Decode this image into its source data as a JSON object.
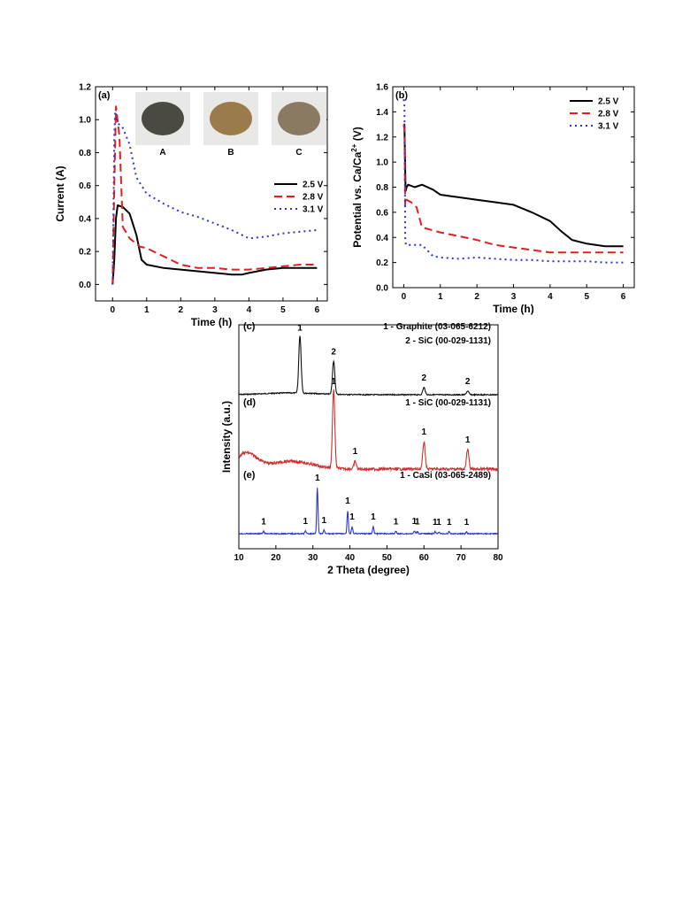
{
  "chart_data": [
    {
      "type": "line",
      "panel": "(a)",
      "xlabel": "Time (h)",
      "ylabel": "Current (A)",
      "xlim": [
        -0.5,
        6.3
      ],
      "ylim": [
        -0.1,
        1.2
      ],
      "xticks": [
        0,
        1,
        2,
        3,
        4,
        5,
        6
      ],
      "yticks": [
        0.0,
        0.2,
        0.4,
        0.6,
        0.8,
        1.0,
        1.2
      ],
      "legend_position": "middle-right",
      "insets": [
        {
          "label": "A",
          "color": "#4a4a42"
        },
        {
          "label": "B",
          "color": "#9a7c4c"
        },
        {
          "label": "C",
          "color": "#8a7a62"
        }
      ],
      "series": [
        {
          "name": "2.5 V",
          "color": "#000000",
          "dash": "solid",
          "x": [
            0.0,
            0.05,
            0.1,
            0.15,
            0.3,
            0.5,
            0.7,
            0.85,
            1.0,
            1.5,
            2.0,
            2.5,
            3.0,
            3.5,
            3.8,
            4.0,
            4.5,
            5.0,
            5.5,
            6.0
          ],
          "y": [
            0.0,
            0.15,
            0.4,
            0.48,
            0.47,
            0.43,
            0.3,
            0.15,
            0.12,
            0.1,
            0.09,
            0.08,
            0.07,
            0.06,
            0.06,
            0.07,
            0.09,
            0.1,
            0.1,
            0.1
          ]
        },
        {
          "name": "2.8 V",
          "color": "#e02020",
          "dash": "dashed",
          "x": [
            0.0,
            0.05,
            0.1,
            0.2,
            0.3,
            0.5,
            0.8,
            1.0,
            1.5,
            2.0,
            2.5,
            3.0,
            3.5,
            4.0,
            4.5,
            5.0,
            5.5,
            6.0
          ],
          "y": [
            0.0,
            0.6,
            1.08,
            0.9,
            0.35,
            0.28,
            0.23,
            0.22,
            0.17,
            0.12,
            0.1,
            0.1,
            0.09,
            0.09,
            0.1,
            0.11,
            0.12,
            0.12
          ]
        },
        {
          "name": "3.1 V",
          "color": "#2a35d0",
          "dash": "dotted",
          "x": [
            0.0,
            0.05,
            0.08,
            0.15,
            0.3,
            0.5,
            0.7,
            1.0,
            1.5,
            2.0,
            2.5,
            3.0,
            3.5,
            4.0,
            4.5,
            5.0,
            5.5,
            6.0
          ],
          "y": [
            0.0,
            0.9,
            1.05,
            0.98,
            0.95,
            0.85,
            0.65,
            0.55,
            0.49,
            0.44,
            0.41,
            0.37,
            0.33,
            0.28,
            0.29,
            0.31,
            0.32,
            0.33
          ]
        }
      ]
    },
    {
      "type": "line",
      "panel": "(b)",
      "xlabel": "Time (h)",
      "ylabel": "Potential vs. Ca/Ca",
      "ylabel_sup": "2+",
      "ylabel_unit": " (V)",
      "xlim": [
        -0.3,
        6.3
      ],
      "ylim": [
        0.0,
        1.6
      ],
      "xticks": [
        0,
        1,
        2,
        3,
        4,
        5,
        6
      ],
      "yticks": [
        0.0,
        0.2,
        0.4,
        0.6,
        0.8,
        1.0,
        1.2,
        1.4,
        1.6
      ],
      "legend_position": "top-right",
      "series": [
        {
          "name": "2.5 V",
          "color": "#000000",
          "dash": "solid",
          "x": [
            0.0,
            0.02,
            0.05,
            0.08,
            0.12,
            0.3,
            0.5,
            0.8,
            1.0,
            1.5,
            2.0,
            2.5,
            3.0,
            3.5,
            4.0,
            4.3,
            4.6,
            5.0,
            5.5,
            6.0
          ],
          "y": [
            1.3,
            1.3,
            0.77,
            0.8,
            0.82,
            0.8,
            0.82,
            0.78,
            0.74,
            0.72,
            0.7,
            0.68,
            0.66,
            0.6,
            0.53,
            0.45,
            0.38,
            0.35,
            0.33,
            0.33
          ]
        },
        {
          "name": "2.8 V",
          "color": "#e02020",
          "dash": "dashed",
          "x": [
            0.0,
            0.02,
            0.04,
            0.08,
            0.2,
            0.35,
            0.5,
            1.0,
            1.5,
            2.0,
            2.5,
            3.0,
            3.5,
            4.0,
            4.5,
            5.0,
            5.5,
            6.0
          ],
          "y": [
            1.3,
            1.25,
            0.65,
            0.7,
            0.68,
            0.64,
            0.48,
            0.44,
            0.41,
            0.38,
            0.34,
            0.32,
            0.3,
            0.28,
            0.28,
            0.28,
            0.28,
            0.28
          ]
        },
        {
          "name": "3.1 V",
          "color": "#2a35d0",
          "dash": "dotted",
          "x": [
            0.0,
            0.02,
            0.04,
            0.06,
            0.3,
            0.5,
            0.8,
            1.0,
            1.5,
            2.0,
            2.5,
            3.0,
            3.5,
            4.0,
            4.5,
            5.0,
            5.5,
            6.0
          ],
          "y": [
            1.5,
            1.45,
            0.4,
            0.34,
            0.34,
            0.34,
            0.25,
            0.24,
            0.23,
            0.24,
            0.23,
            0.22,
            0.22,
            0.21,
            0.21,
            0.21,
            0.2,
            0.2
          ]
        }
      ]
    },
    {
      "type": "line",
      "panel": "(c), (d), (e)",
      "xlabel": "2 Theta (degree)",
      "ylabel": "Intensity (a.u.)",
      "xlim": [
        10,
        80
      ],
      "xticks": [
        10,
        20,
        30,
        40,
        50,
        60,
        70,
        80
      ],
      "yticks_shown": false,
      "patterns": [
        {
          "label": "(c)",
          "color": "#111111",
          "phase_legend": [
            "1 - Graphite (03-065-6212)",
            "2 - SiC (00-029-1131)"
          ],
          "peaks": [
            {
              "x": 26.5,
              "height": 0.95,
              "label": "1"
            },
            {
              "x": 35.6,
              "height": 0.55,
              "label": "2"
            },
            {
              "x": 60.0,
              "height": 0.12,
              "label": "2"
            },
            {
              "x": 71.8,
              "height": 0.06,
              "label": "2"
            }
          ]
        },
        {
          "label": "(d)",
          "color": "#d03030",
          "phase_legend": [
            "1 - SiC (00-029-1131)"
          ],
          "peaks": [
            {
              "x": 35.6,
              "height": 1.0,
              "label": "1"
            },
            {
              "x": 41.4,
              "height": 0.1,
              "label": "1"
            },
            {
              "x": 60.0,
              "height": 0.35,
              "label": "1"
            },
            {
              "x": 71.8,
              "height": 0.25,
              "label": "1"
            }
          ]
        },
        {
          "label": "(e)",
          "color": "#2a35d0",
          "phase_legend": [
            "1 - CaSi (03-065-2489)"
          ],
          "peaks": [
            {
              "x": 16.7,
              "height": 0.05,
              "label": "1"
            },
            {
              "x": 28.0,
              "height": 0.06,
              "label": "1"
            },
            {
              "x": 31.2,
              "height": 1.0,
              "label": "1"
            },
            {
              "x": 33.0,
              "height": 0.08,
              "label": "1"
            },
            {
              "x": 39.4,
              "height": 0.5,
              "label": "1"
            },
            {
              "x": 40.6,
              "height": 0.15,
              "label": "1"
            },
            {
              "x": 46.3,
              "height": 0.15,
              "label": "1"
            },
            {
              "x": 52.4,
              "height": 0.05,
              "label": "1"
            },
            {
              "x": 57.4,
              "height": 0.06,
              "label": "1"
            },
            {
              "x": 58.2,
              "height": 0.05,
              "label": "1"
            },
            {
              "x": 63.0,
              "height": 0.04,
              "label": "1"
            },
            {
              "x": 64.0,
              "height": 0.04,
              "label": "1"
            },
            {
              "x": 66.8,
              "height": 0.04,
              "label": "1"
            },
            {
              "x": 71.5,
              "height": 0.04,
              "label": "1"
            }
          ]
        }
      ]
    }
  ]
}
